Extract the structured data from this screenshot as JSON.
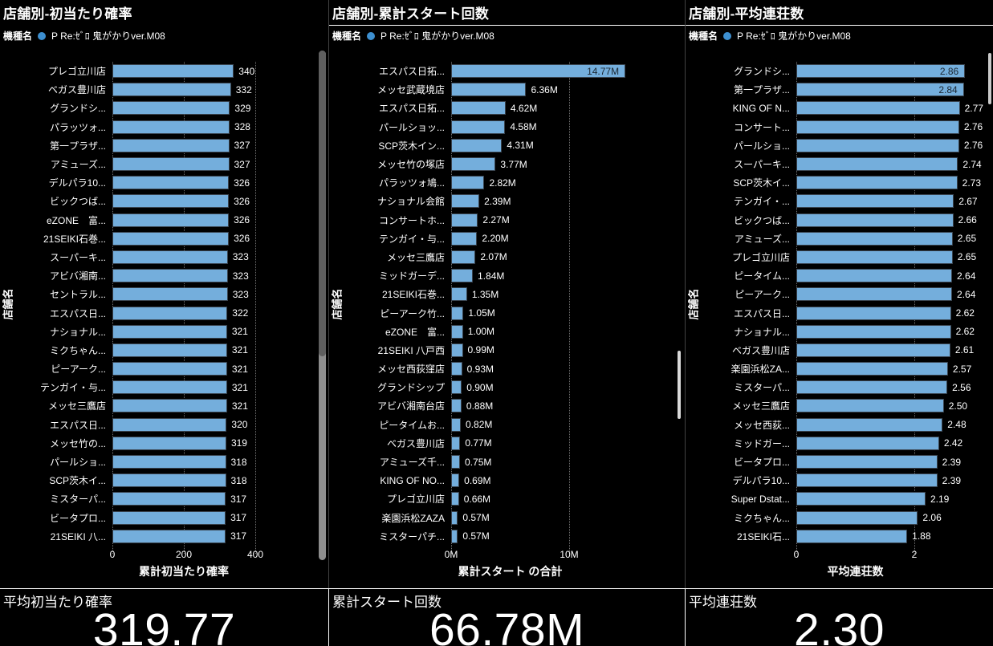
{
  "colors": {
    "background": "#000000",
    "bar": "#74AEDC",
    "bar_border": "#39434e",
    "legend_dot": "#3D8FD0",
    "inside_label_text": "#1A2530",
    "text": "#FFFFFF"
  },
  "panels": [
    {
      "title": "店舗別-初当たり確率",
      "legend": {
        "label": "機種名",
        "value": "P Re:ｾﾞﾛ 鬼がかりver.M08"
      },
      "y_axis_title": "店舗名",
      "x_axis_title": "累計初当たり確率"
    },
    {
      "title": "店舗別-累計スタート回数",
      "legend": {
        "label": "機種名",
        "value": "P Re:ｾﾞﾛ 鬼がかりver.M08"
      },
      "y_axis_title": "店舗名",
      "x_axis_title": "累計スタート の合計"
    },
    {
      "title": "店舗別-平均連荘数",
      "legend": {
        "label": "機種名",
        "value": "P Re:ｾﾞﾛ 鬼がかりver.M08"
      },
      "y_axis_title": "店舗名",
      "x_axis_title": "平均連荘数"
    }
  ],
  "chart_data": [
    {
      "type": "bar",
      "orientation": "horizontal",
      "title": "店舗別-初当たり確率",
      "xlabel": "累計初当たり確率",
      "ylabel": "店舗名",
      "grid": "dotted-vertical",
      "legend_position": "top",
      "legend": [
        {
          "name": "P Re:ｾﾞﾛ 鬼がかりver.M08",
          "color": "#3D8FD0"
        }
      ],
      "categories": [
        "プレゴ立川店",
        "ベガス豊川店",
        "グランドシ...",
        "パラッツォ...",
        "第一プラザ...",
        "アミューズ...",
        "デルパラ10...",
        "ビックつば...",
        "eZONE　富...",
        "21SEIKI石巻...",
        "スーパーキ...",
        "アビバ湘南...",
        "セントラル...",
        "エスパス日...",
        "ナショナル...",
        "ミクちゃん...",
        "ピーアーク...",
        "テンガイ・与...",
        "メッセ三鷹店",
        "エスパス日...",
        "メッセ竹の...",
        "パールショ...",
        "SCP茨木イ...",
        "ミスターパ...",
        "ビータプロ...",
        "21SEIKI 八..."
      ],
      "values": [
        340,
        332,
        329,
        328,
        327,
        327,
        326,
        326,
        326,
        326,
        323,
        323,
        323,
        322,
        321,
        321,
        321,
        321,
        321,
        320,
        319,
        318,
        318,
        317,
        317,
        317
      ],
      "value_labels": [
        "340",
        "332",
        "329",
        "328",
        "327",
        "327",
        "326",
        "326",
        "326",
        "326",
        "323",
        "323",
        "323",
        "322",
        "321",
        "321",
        "321",
        "321",
        "321",
        "320",
        "319",
        "318",
        "318",
        "317",
        "317",
        "317"
      ],
      "tick_values": [
        0,
        200,
        400
      ],
      "tick_labels": [
        "0",
        "200",
        "400"
      ],
      "xlim": [
        0,
        450
      ],
      "inside_label_indices": []
    },
    {
      "type": "bar",
      "orientation": "horizontal",
      "title": "店舗別-累計スタート回数",
      "xlabel": "累計スタート の合計",
      "ylabel": "店舗名",
      "grid": "dotted-vertical",
      "legend_position": "top",
      "legend": [
        {
          "name": "P Re:ｾﾞﾛ 鬼がかりver.M08",
          "color": "#3D8FD0"
        }
      ],
      "categories": [
        "エスパス日拓...",
        "メッセ武蔵境店",
        "エスパス日拓...",
        "パールショッ...",
        "SCP茨木イン...",
        "メッセ竹の塚店",
        "パラッツォ鳩...",
        "ナショナル会館",
        "コンサートホ...",
        "テンガイ・与...",
        "メッセ三鷹店",
        "ミッドガーデ...",
        "21SEIKI石巻...",
        "ピーアーク竹...",
        "eZONE　富...",
        "21SEIKI 八戸西",
        "メッセ西荻窪店",
        "グランドシップ",
        "アビバ湘南台店",
        "ピータイムお...",
        "ベガス豊川店",
        "アミューズ千...",
        "KING OF NO...",
        "プレゴ立川店",
        "楽園浜松ZAZA",
        "ミスターパチ..."
      ],
      "values": [
        14.77,
        6.36,
        4.62,
        4.58,
        4.31,
        3.77,
        2.82,
        2.39,
        2.27,
        2.2,
        2.07,
        1.84,
        1.35,
        1.05,
        1.0,
        0.99,
        0.93,
        0.9,
        0.88,
        0.82,
        0.77,
        0.75,
        0.69,
        0.66,
        0.57,
        0.57
      ],
      "value_labels": [
        "14.77M",
        "6.36M",
        "4.62M",
        "4.58M",
        "4.31M",
        "3.77M",
        "2.82M",
        "2.39M",
        "2.27M",
        "2.20M",
        "2.07M",
        "1.84M",
        "1.35M",
        "1.05M",
        "1.00M",
        "0.99M",
        "0.93M",
        "0.90M",
        "0.88M",
        "0.82M",
        "0.77M",
        "0.75M",
        "0.69M",
        "0.66M",
        "0.57M",
        "0.57M"
      ],
      "tick_values": [
        0,
        10
      ],
      "tick_labels": [
        "0M",
        "10M"
      ],
      "xlim": [
        0,
        19
      ],
      "inside_label_indices": [
        0
      ]
    },
    {
      "type": "bar",
      "orientation": "horizontal",
      "title": "店舗別-平均連荘数",
      "xlabel": "平均連荘数",
      "ylabel": "店舗名",
      "grid": "dotted-vertical",
      "legend_position": "top",
      "legend": [
        {
          "name": "P Re:ｾﾞﾛ 鬼がかりver.M08",
          "color": "#3D8FD0"
        }
      ],
      "categories": [
        "グランドシ...",
        "第一プラザ...",
        "KING OF N...",
        "コンサート...",
        "パールショ...",
        "スーパーキ...",
        "SCP茨木イ...",
        "テンガイ・...",
        "ビックつば...",
        "アミューズ...",
        "プレゴ立川店",
        "ピータイム...",
        "ピーアーク...",
        "エスパス日...",
        "ナショナル...",
        "ベガス豊川店",
        "楽園浜松ZA...",
        "ミスターパ...",
        "メッセ三鷹店",
        "メッセ西荻...",
        "ミッドガー...",
        "ビータプロ...",
        "デルパラ10...",
        "Super Dstat...",
        "ミクちゃん...",
        "21SEIKI石..."
      ],
      "values": [
        2.86,
        2.84,
        2.77,
        2.76,
        2.76,
        2.74,
        2.73,
        2.67,
        2.66,
        2.65,
        2.65,
        2.64,
        2.64,
        2.62,
        2.62,
        2.61,
        2.57,
        2.56,
        2.5,
        2.48,
        2.42,
        2.39,
        2.39,
        2.19,
        2.06,
        1.88
      ],
      "value_labels": [
        "2.86",
        "2.84",
        "2.77",
        "2.76",
        "2.76",
        "2.74",
        "2.73",
        "2.67",
        "2.66",
        "2.65",
        "2.65",
        "2.64",
        "2.64",
        "2.62",
        "2.62",
        "2.61",
        "2.57",
        "2.56",
        "2.50",
        "2.48",
        "2.42",
        "2.39",
        "2.39",
        "2.19",
        "2.06",
        "1.88"
      ],
      "tick_values": [
        0,
        2
      ],
      "tick_labels": [
        "0",
        "2"
      ],
      "xlim": [
        0,
        3.3
      ],
      "inside_label_indices": [
        0,
        1
      ]
    }
  ],
  "cards": [
    {
      "label": "平均初当たり確率",
      "value": "319.77"
    },
    {
      "label": "累計スタート回数",
      "value": "66.78M"
    },
    {
      "label": "平均連荘数",
      "value": "2.30"
    }
  ]
}
